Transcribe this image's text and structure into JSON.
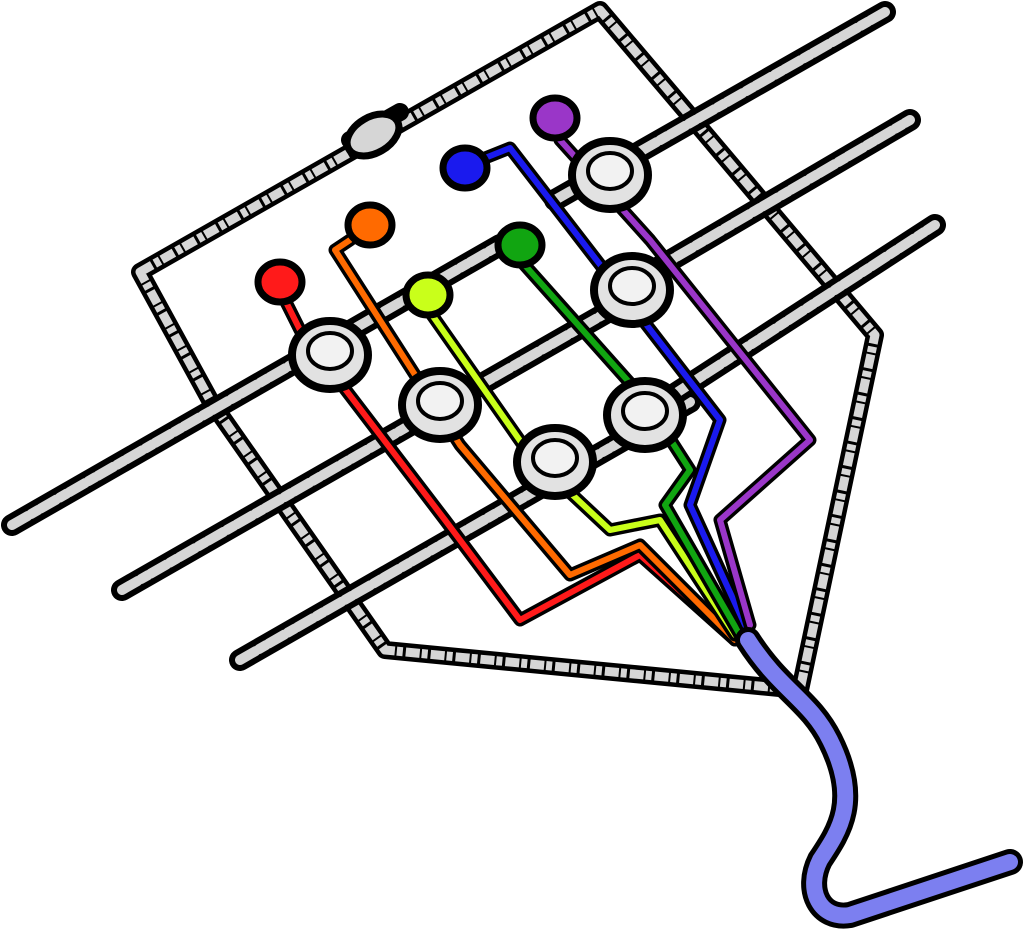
{
  "colors": {
    "background": "#ffffff",
    "outline": "#000000",
    "tube": "#d6d6d6",
    "bulb": "#e2e2e2",
    "output": "#7c7ff0",
    "red": "#ff1a1a",
    "orange": "#ff6a00",
    "yellow_green": "#c9ff1a",
    "green": "#11a511",
    "blue": "#1a1aee",
    "purple": "#9a36c8"
  },
  "channels": [
    {
      "name": "red",
      "color_key": "red"
    },
    {
      "name": "orange",
      "color_key": "orange"
    },
    {
      "name": "yellow-green",
      "color_key": "yellow_green"
    },
    {
      "name": "green",
      "color_key": "green"
    },
    {
      "name": "blue",
      "color_key": "blue"
    },
    {
      "name": "purple",
      "color_key": "purple"
    }
  ],
  "icons": {
    "reservoir": "teardrop-reservoir",
    "junction": "mixing-bulb",
    "valve": "valve-bulge"
  }
}
